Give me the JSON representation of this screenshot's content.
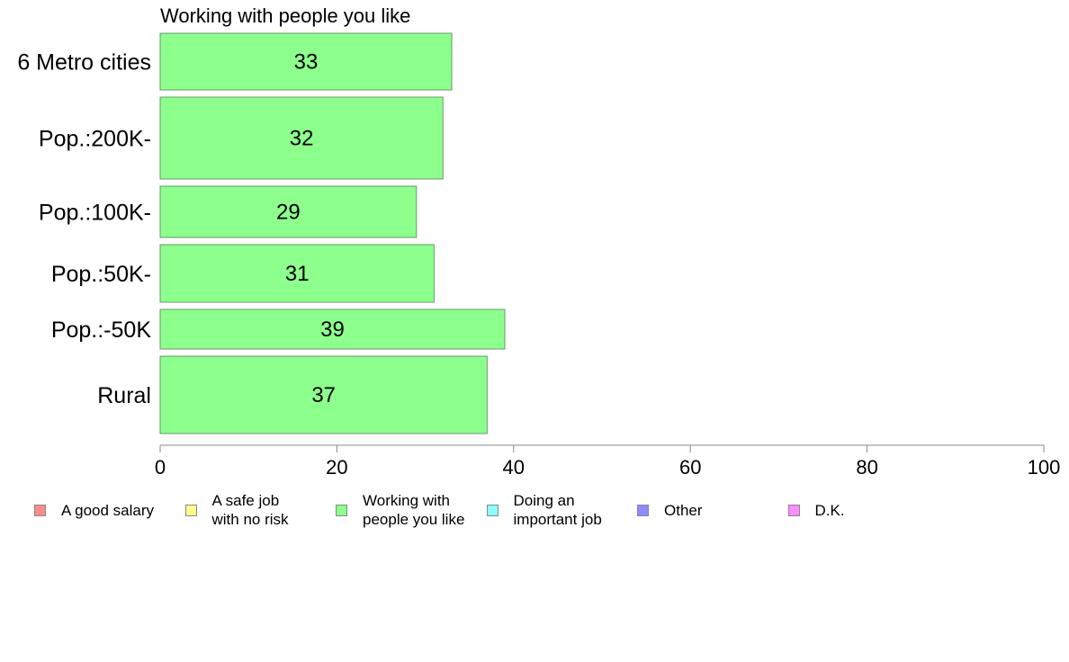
{
  "chart_data": {
    "type": "bar",
    "orientation": "horizontal",
    "title": "Working with people you like",
    "categories": [
      "6 Metro cities",
      "Pop.:200K-",
      "Pop.:100K-",
      "Pop.:50K-",
      "Pop.:-50K",
      "Rural"
    ],
    "values": [
      33,
      32,
      29,
      31,
      39,
      37
    ],
    "xlim": [
      0,
      100
    ],
    "xticks": [
      "0",
      "20",
      "40",
      "60",
      "80",
      "100"
    ],
    "grid": false,
    "bar_color": "#8cff8c",
    "bar_border": "#6a9a6a",
    "legend_position": "bottom",
    "legend": [
      {
        "label": "A good salary",
        "color": "#ff8c8c"
      },
      {
        "label": "A safe job\nwith no risk",
        "color": "#ffff8c"
      },
      {
        "label": "Working with\npeople you like",
        "color": "#8cff8c"
      },
      {
        "label": "Doing an\nimportant job",
        "color": "#8cffff"
      },
      {
        "label": "Other",
        "color": "#8c8cff"
      },
      {
        "label": "D.K.",
        "color": "#ff8cff"
      }
    ]
  }
}
